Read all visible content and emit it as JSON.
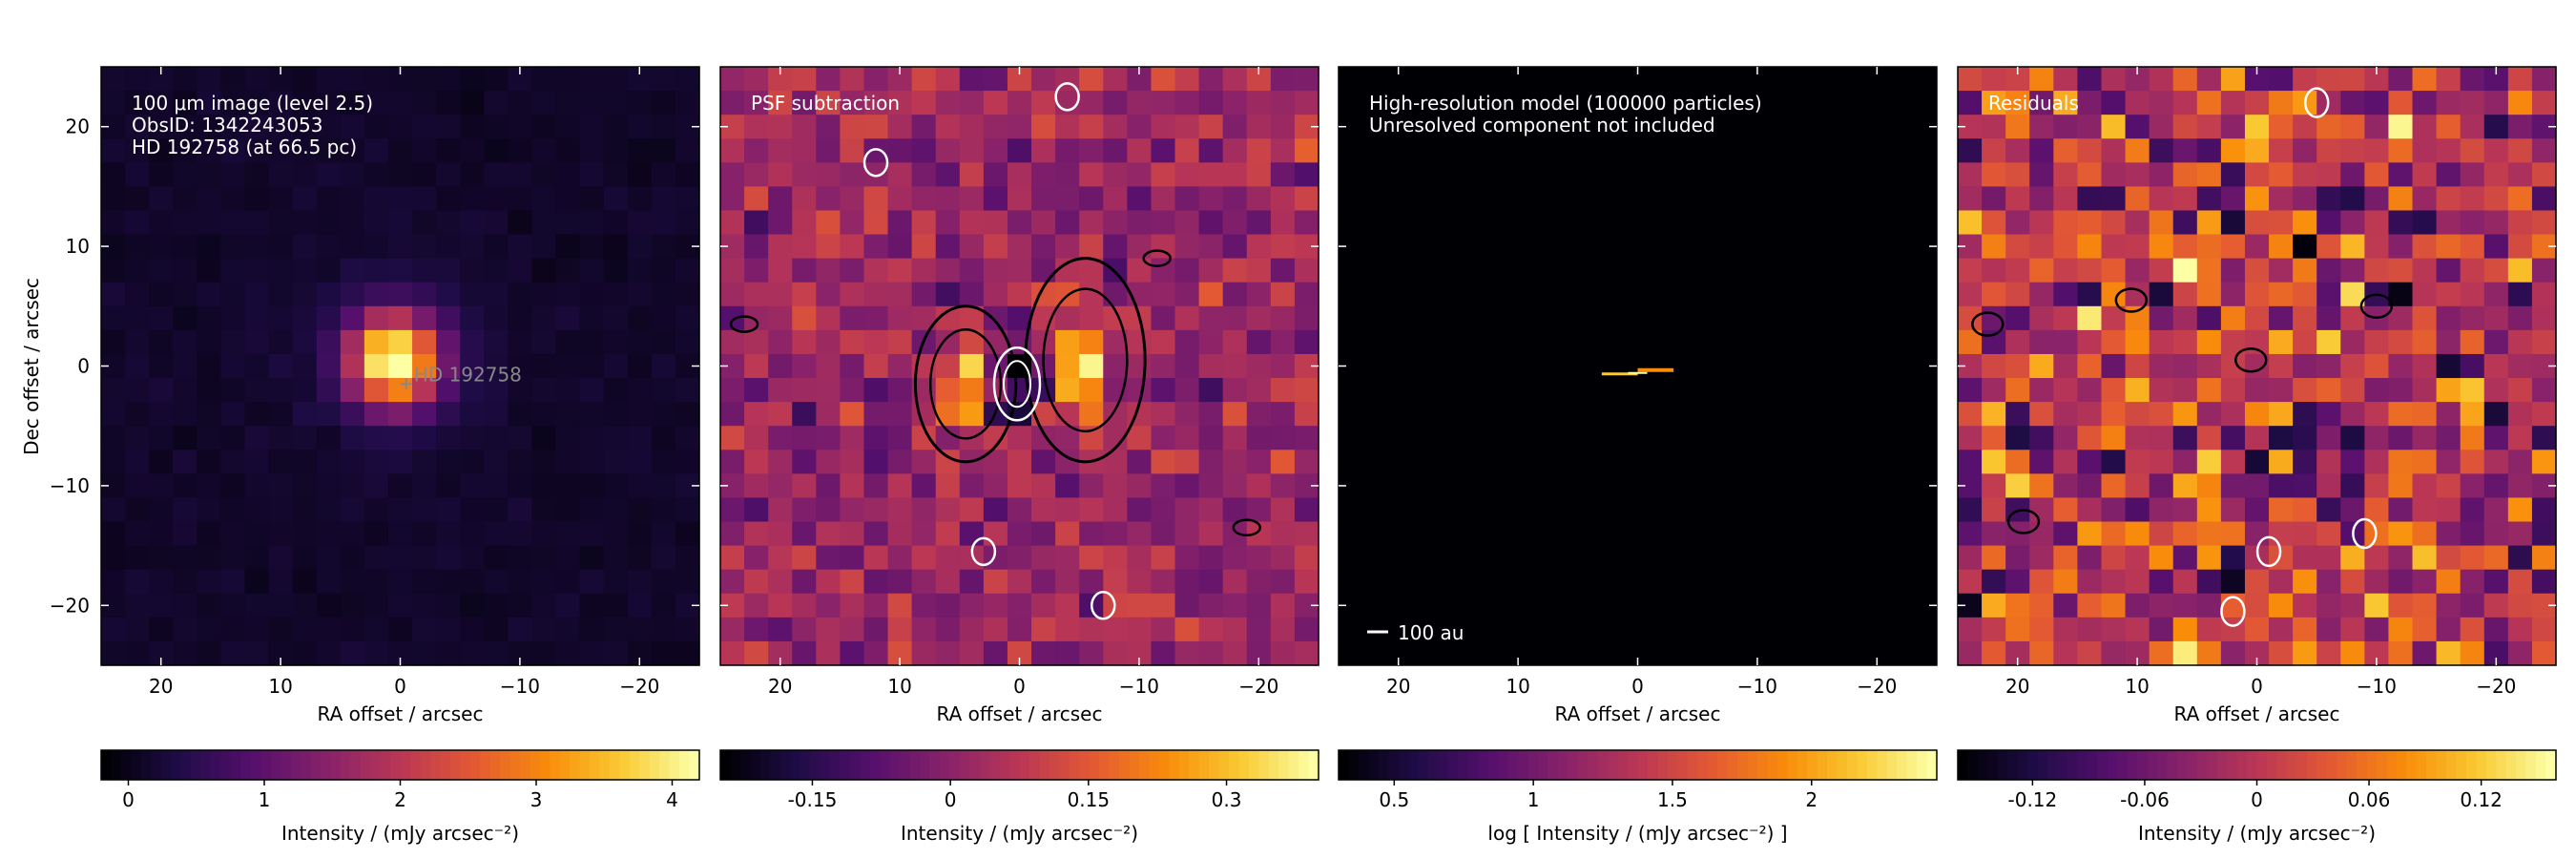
{
  "figure": {
    "dec_label": "Dec offset / arcsec",
    "ra_label": "RA offset / arcsec"
  },
  "chart_data": [
    {
      "type": "heatmap",
      "panel": "image",
      "annotation": [
        "100 μm image (level 2.5)",
        "ObsID: 1342243053",
        "HD 192758 (at 66.5 pc)"
      ],
      "xlabel": "RA offset / arcsec",
      "ylabel": "Dec offset / arcsec",
      "xlim": [
        25,
        -25
      ],
      "ylim": [
        -25,
        25
      ],
      "xticks": [
        "20",
        "10",
        "0",
        "−10",
        "−20"
      ],
      "yticks": [
        "20",
        "10",
        "0",
        "−10",
        "−20"
      ],
      "star_marker": {
        "x": -0.5,
        "y": -1.5,
        "label": "HD 192758"
      },
      "source": {
        "x": 0.5,
        "y": 0.5,
        "sigma_arcsec": 2.6,
        "peak": 4.2
      },
      "colorbar": {
        "label": "Intensity / (mJy arcsec⁻²)",
        "range": [
          -0.2,
          4.2
        ],
        "ticks": [
          0,
          1,
          2,
          3,
          4
        ]
      },
      "colormap": "inferno"
    },
    {
      "type": "heatmap",
      "panel": "psf_subtraction",
      "title": "PSF subtraction",
      "xlabel": "RA offset / arcsec",
      "xlim": [
        25,
        -25
      ],
      "ylim": [
        -25,
        25
      ],
      "xticks": [
        "20",
        "10",
        "0",
        "−10",
        "−20"
      ],
      "lobes": [
        {
          "x": 4.5,
          "y": -1.5,
          "amp": 0.3
        },
        {
          "x": -5.5,
          "y": -0.5,
          "amp": 0.32
        },
        {
          "x": 0.2,
          "y": -1.5,
          "amp": -0.22
        }
      ],
      "colorbar": {
        "label": "Intensity / (mJy arcsec⁻²)",
        "range": [
          -0.25,
          0.4
        ],
        "ticks": [
          -0.15,
          0,
          0.15,
          0.3
        ],
        "tick_labels": [
          "-0.15",
          "0",
          "0.15",
          "0.3"
        ]
      },
      "colormap": "inferno"
    },
    {
      "type": "heatmap",
      "panel": "model",
      "annotation": [
        "High-resolution model (100000 particles)",
        "Unresolved component not included"
      ],
      "scalebar_label": "100 au",
      "xlabel": "RA offset / arcsec",
      "xlim": [
        25,
        -25
      ],
      "ylim": [
        -25,
        25
      ],
      "xticks": [
        "20",
        "10",
        "0",
        "−10",
        "−20"
      ],
      "disk": {
        "x_from": 3.0,
        "x_to": -3.0,
        "y": -0.5
      },
      "colorbar": {
        "label": "log [ Intensity / (mJy arcsec⁻²) ]",
        "range": [
          0.3,
          2.45
        ],
        "ticks": [
          0.5,
          1,
          1.5,
          2
        ],
        "tick_labels": [
          "0.5",
          "1",
          "1.5",
          "2"
        ]
      },
      "colormap": "inferno"
    },
    {
      "type": "heatmap",
      "panel": "residuals",
      "title": "Residuals",
      "xlabel": "RA offset / arcsec",
      "xlim": [
        25,
        -25
      ],
      "ylim": [
        -25,
        25
      ],
      "xticks": [
        "20",
        "10",
        "0",
        "−10",
        "−20"
      ],
      "colorbar": {
        "label": "Intensity / (mJy arcsec⁻²)",
        "range": [
          -0.16,
          0.16
        ],
        "ticks": [
          -0.12,
          -0.06,
          0,
          0.06,
          0.12
        ],
        "tick_labels": [
          "-0.12",
          "-0.06",
          "0",
          "0.06",
          "0.12"
        ]
      },
      "colormap": "inferno"
    }
  ]
}
